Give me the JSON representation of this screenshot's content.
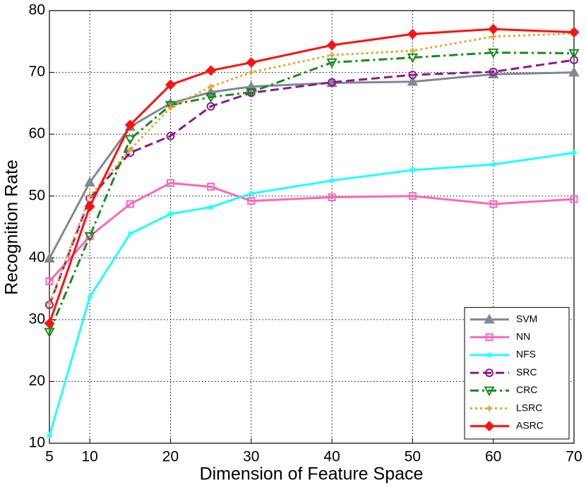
{
  "chart_data": {
    "type": "line",
    "xlabel": "Dimension of Feature Space",
    "ylabel": "Recognition Rate",
    "x": [
      5,
      10,
      15,
      20,
      25,
      30,
      40,
      50,
      60,
      70
    ],
    "xlim": [
      5,
      70
    ],
    "xticks": [
      5,
      10,
      20,
      30,
      40,
      50,
      60,
      70
    ],
    "ylim": [
      10,
      80
    ],
    "yticks": [
      10,
      20,
      30,
      40,
      50,
      60,
      70,
      80
    ],
    "grid": true,
    "legend": "lower right",
    "series": [
      {
        "name": "SVM",
        "color": "#808890",
        "marker": "triangle",
        "dash": "solid",
        "values": [
          39.9,
          52.2,
          61.2,
          65,
          66.8,
          67.7,
          68.3,
          68.5,
          69.7,
          70
        ]
      },
      {
        "name": "NN",
        "color": "#ff66bb",
        "marker": "square",
        "dash": "solid",
        "values": [
          36.2,
          43.5,
          48.7,
          52.1,
          51.5,
          49.2,
          49.8,
          50,
          48.7,
          49.5
        ]
      },
      {
        "name": "NFS",
        "color": "#22ffff",
        "marker": "star",
        "dash": "solid",
        "values": [
          11.2,
          33.7,
          43.9,
          47.1,
          48.2,
          50.4,
          52.5,
          54.2,
          55.1,
          57
        ]
      },
      {
        "name": "SRC",
        "color": "#8b1a8b",
        "marker": "circle",
        "dash": "dashed",
        "values": [
          32.4,
          49.6,
          57,
          59.7,
          64.5,
          66.7,
          68.4,
          69.6,
          70.1,
          72
        ]
      },
      {
        "name": "CRC",
        "color": "#1a8a1a",
        "marker": "triangle-down",
        "dash": "dashdot",
        "values": [
          28,
          43.5,
          59.2,
          64.7,
          66,
          66.8,
          71.6,
          72.4,
          73.2,
          73.1
        ]
      },
      {
        "name": "LSRC",
        "color": "#e0a830",
        "marker": "plus",
        "dash": "dotted",
        "values": [
          32.6,
          50,
          57.5,
          64.3,
          67.7,
          70,
          72.8,
          73.5,
          75.8,
          76.3
        ]
      },
      {
        "name": "ASRC",
        "color": "#ff1010",
        "marker": "diamond",
        "dash": "solid",
        "values": [
          29.4,
          48.3,
          61.5,
          68,
          70.3,
          71.6,
          74.4,
          76.2,
          77,
          76.5
        ]
      }
    ]
  }
}
